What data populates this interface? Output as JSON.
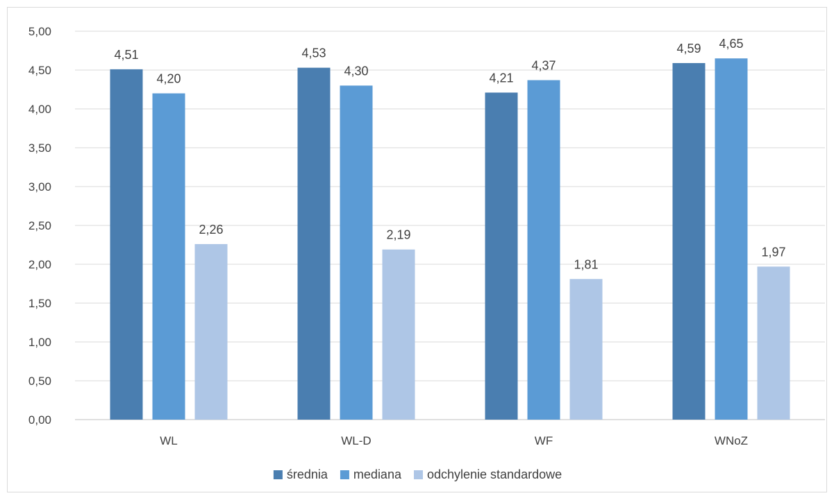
{
  "chart_data": {
    "type": "bar",
    "categories": [
      "WL",
      "WL-D",
      "WF",
      "WNoZ"
    ],
    "series": [
      {
        "name": "średnia",
        "values": [
          4.51,
          4.53,
          4.21,
          4.59
        ],
        "labels": [
          "4,51",
          "4,53",
          "4,21",
          "4,59"
        ],
        "color": "#4a7eb0"
      },
      {
        "name": "mediana",
        "values": [
          4.2,
          4.3,
          4.37,
          4.65
        ],
        "labels": [
          "4,20",
          "4,30",
          "4,37",
          "4,65"
        ],
        "color": "#5b9bd5"
      },
      {
        "name": "odchylenie standardowe",
        "values": [
          2.26,
          2.19,
          1.81,
          1.97
        ],
        "labels": [
          "2,26",
          "2,19",
          "1,81",
          "1,97"
        ],
        "color": "#aec6e6"
      }
    ],
    "ylim": [
      0,
      5
    ],
    "yticks": [
      "0,00",
      "0,50",
      "1,00",
      "1,50",
      "2,00",
      "2,50",
      "3,00",
      "3,50",
      "4,00",
      "4,50",
      "5,00"
    ],
    "ytick_step": 0.5,
    "grid": true,
    "legend_position": "bottom",
    "title": "",
    "xlabel": "",
    "ylabel": ""
  }
}
